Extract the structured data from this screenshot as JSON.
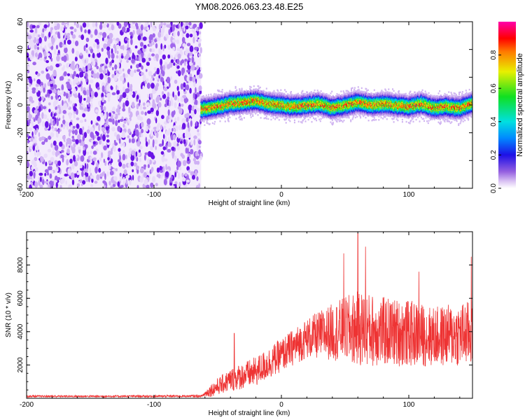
{
  "title": "YM08.2026.063.23.48.E25",
  "chart_data": [
    {
      "type": "heatmap",
      "name": "spectrogram",
      "xlabel": "Height of straight line (km)",
      "ylabel": "Frequency (Hz)",
      "xlim": [
        -200,
        150
      ],
      "ylim": [
        -60,
        60
      ],
      "xticks": [
        -200,
        -100,
        0,
        100
      ],
      "yticks": [
        -60,
        -40,
        -20,
        0,
        20,
        40,
        60
      ],
      "noise_region": {
        "x_from": -200,
        "x_to": -63,
        "y_from": -60,
        "y_to": 60,
        "amplitude": "low (0.0-0.2)"
      },
      "signal_band": {
        "x_from": -63,
        "x_to": 150,
        "center_frequency_hz": [
          {
            "x": -62,
            "y": -3
          },
          {
            "x": -50,
            "y": -1
          },
          {
            "x": -40,
            "y": 1
          },
          {
            "x": -30,
            "y": 2
          },
          {
            "x": -20,
            "y": 3
          },
          {
            "x": -10,
            "y": 1
          },
          {
            "x": 0,
            "y": 0
          },
          {
            "x": 10,
            "y": -1
          },
          {
            "x": 20,
            "y": 0
          },
          {
            "x": 30,
            "y": 1
          },
          {
            "x": 40,
            "y": -2
          },
          {
            "x": 50,
            "y": 0
          },
          {
            "x": 60,
            "y": 2
          },
          {
            "x": 70,
            "y": 0
          },
          {
            "x": 80,
            "y": 1
          },
          {
            "x": 90,
            "y": 0
          },
          {
            "x": 100,
            "y": -1
          },
          {
            "x": 110,
            "y": 1
          },
          {
            "x": 120,
            "y": -2
          },
          {
            "x": 130,
            "y": -1
          },
          {
            "x": 140,
            "y": -2
          },
          {
            "x": 150,
            "y": 1
          }
        ],
        "halfwidth_hz": 7,
        "peak_amplitude": 0.95
      },
      "colorbar": {
        "label": "Normalized spectral amplitude",
        "ticks": [
          0.0,
          0.2,
          0.4,
          0.6,
          0.8
        ],
        "tick_labels": [
          "0.0",
          "0.2",
          "0.4",
          "0.6",
          "0.8"
        ],
        "range": [
          0,
          1
        ]
      }
    },
    {
      "type": "line",
      "name": "snr",
      "xlabel": "Height of straight line (km)",
      "ylabel": "SNR (10 * v/v)",
      "xlim": [
        -200,
        150
      ],
      "ylim": [
        0,
        10000
      ],
      "xticks": [
        -200,
        -100,
        0,
        100
      ],
      "yticks": [
        2000,
        4000,
        6000,
        8000
      ],
      "color": "#ee3333",
      "envelope": [
        {
          "x": -200,
          "mean": 120,
          "spread": 60
        },
        {
          "x": -130,
          "mean": 120,
          "spread": 60
        },
        {
          "x": -63,
          "mean": 130,
          "spread": 70
        },
        {
          "x": -55,
          "mean": 500,
          "spread": 400
        },
        {
          "x": -40,
          "mean": 1100,
          "spread": 700
        },
        {
          "x": -20,
          "mean": 1600,
          "spread": 900
        },
        {
          "x": 0,
          "mean": 2600,
          "spread": 1000
        },
        {
          "x": 20,
          "mean": 3600,
          "spread": 1200
        },
        {
          "x": 40,
          "mean": 4000,
          "spread": 1700
        },
        {
          "x": 60,
          "mean": 4200,
          "spread": 2300
        },
        {
          "x": 80,
          "mean": 4000,
          "spread": 2100
        },
        {
          "x": 100,
          "mean": 3900,
          "spread": 2000
        },
        {
          "x": 120,
          "mean": 3700,
          "spread": 1800
        },
        {
          "x": 150,
          "mean": 3900,
          "spread": 2000
        }
      ],
      "peaks": [
        {
          "x": 60,
          "y": 9900
        },
        {
          "x": 66,
          "y": 9100
        },
        {
          "x": 49,
          "y": 8700
        },
        {
          "x": 108,
          "y": 7600
        },
        {
          "x": 149,
          "y": 8500
        },
        {
          "x": -37,
          "y": 3900
        }
      ]
    }
  ]
}
